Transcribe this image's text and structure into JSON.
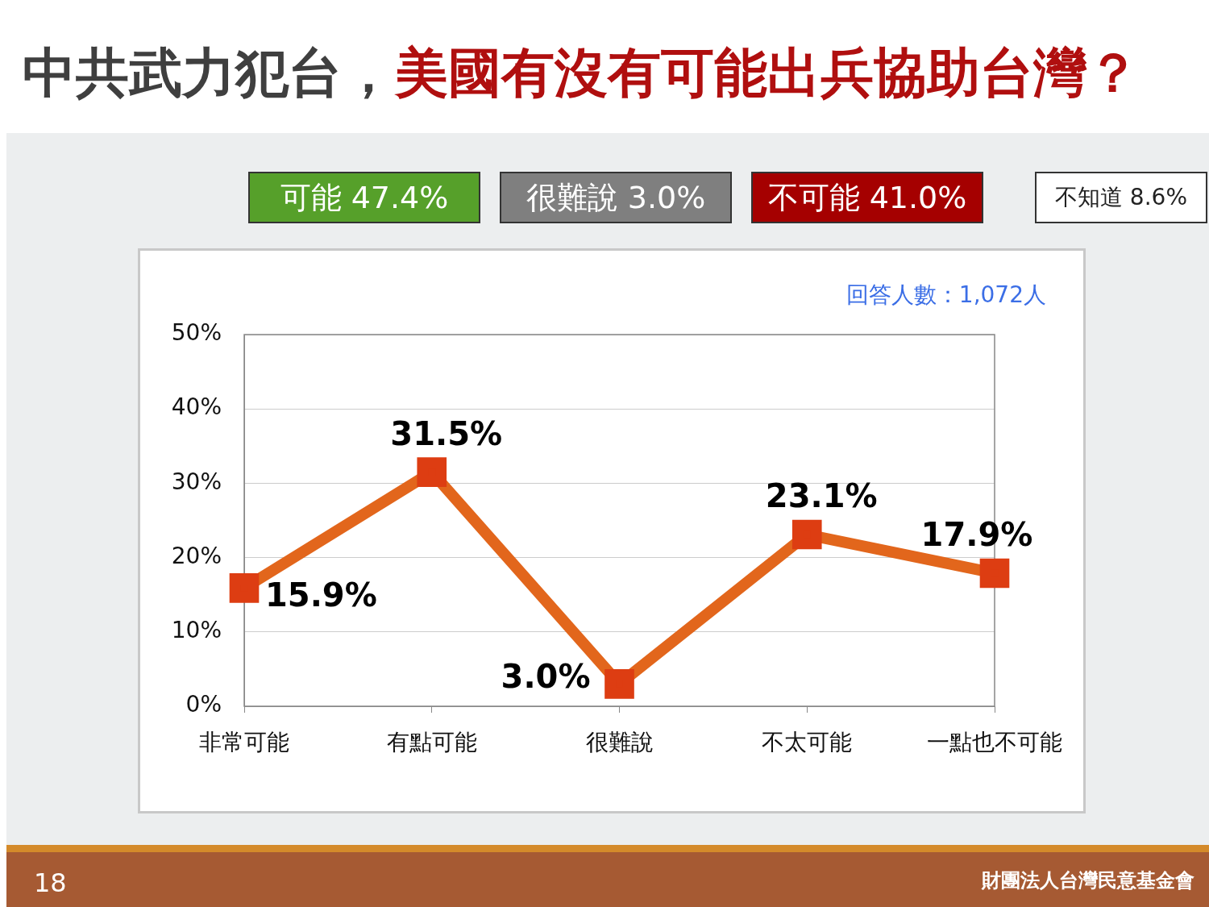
{
  "chart_data": {
    "type": "line",
    "title": "中共武力犯台，",
    "subtitle": "美國有沒有可能出兵協助台灣？",
    "categories": [
      "非常可能",
      "有點可能",
      "很難說",
      "不太可能",
      "一點也不可能"
    ],
    "series": [
      {
        "color": "#e2661c",
        "values": [
          15.9,
          31.5,
          3.0,
          23.1,
          17.9
        ],
        "value_labels": [
          "15.9%",
          "31.5%",
          "3.0%",
          "23.1%",
          "17.9%"
        ]
      }
    ],
    "ylim": [
      0,
      50
    ],
    "yticks": [
      {
        "value": 0,
        "label": "0%"
      },
      {
        "value": 10,
        "label": "10%"
      },
      {
        "value": 20,
        "label": "20%"
      },
      {
        "value": 30,
        "label": "30%"
      },
      {
        "value": 40,
        "label": "40%"
      },
      {
        "value": 50,
        "label": "50%"
      }
    ],
    "grid": "y",
    "legend": false,
    "marker": "square",
    "line_style": "solid",
    "annotations": [
      "可能 47.4%",
      "很難說 3.0%",
      "不可能 41.0%",
      "不知道 8.6%",
      "回答人數：1,072人",
      "18",
      "財團法人台灣民意基金會"
    ]
  }
}
